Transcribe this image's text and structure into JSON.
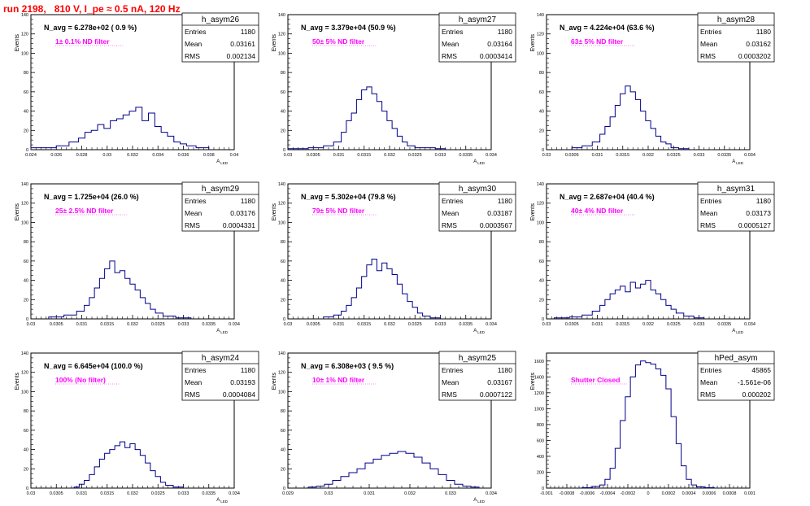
{
  "run_title": "run 2198,   810 V, I_pe ≈ 0.5 nA, 120 Hz",
  "colors": {
    "histogram_line": "#00008b",
    "ann_text": "#ff00ff",
    "title_text": "#ff0000",
    "frame": "#000000"
  },
  "chart_data": [
    {
      "type": "histogram",
      "name": "h_asym26",
      "stats": {
        "entries": "1180",
        "mean": "0.03161",
        "rms": "0.002134"
      },
      "stat_labels": [
        "Entries",
        "Mean",
        "RMS"
      ],
      "navg": "N_avg = 6.278e+02 ( 0.9 %)",
      "annotation": "1± 0.1% ND filter",
      "ylabel": "Events",
      "xlabel": "A_LED",
      "xlim": [
        0.024,
        0.04
      ],
      "ylim": [
        0,
        140
      ],
      "xticks": [
        "0.024",
        "0.026",
        "0.028",
        "0.03",
        "0.032",
        "0.034",
        "0.036",
        "0.038",
        "0.04"
      ],
      "yticks": [
        "0",
        "20",
        "40",
        "60",
        "80",
        "100",
        "120",
        "140"
      ],
      "bins_x": [
        0.0245,
        0.0255,
        0.0265,
        0.0275,
        0.028,
        0.0285,
        0.029,
        0.0295,
        0.03,
        0.0305,
        0.031,
        0.0315,
        0.032,
        0.0325,
        0.033,
        0.0335,
        0.034,
        0.0345,
        0.035,
        0.0355,
        0.036,
        0.0365,
        0.0375
      ],
      "values": [
        2,
        2,
        4,
        8,
        12,
        18,
        20,
        26,
        22,
        30,
        32,
        36,
        40,
        44,
        30,
        38,
        24,
        18,
        14,
        8,
        6,
        4,
        2
      ]
    },
    {
      "type": "histogram",
      "name": "h_asym27",
      "stats": {
        "entries": "1180",
        "mean": "0.03164",
        "rms": "0.0003414"
      },
      "stat_labels": [
        "Entries",
        "Mean",
        "RMS"
      ],
      "navg": "N_avg = 3.379e+04 (50.9 %)",
      "annotation": "50± 5% ND filter",
      "ylabel": "Events",
      "xlabel": "A_LED",
      "xlim": [
        0.03,
        0.034
      ],
      "ylim": [
        0,
        140
      ],
      "xticks": [
        "0.03",
        "0.0305",
        "0.031",
        "0.0315",
        "0.032",
        "0.0325",
        "0.033",
        "0.0335",
        "0.034"
      ],
      "yticks": [
        "0",
        "20",
        "40",
        "60",
        "80",
        "100",
        "120",
        "140"
      ],
      "bins_x": [
        0.0302,
        0.0306,
        0.0308,
        0.031,
        0.0311,
        0.0312,
        0.0313,
        0.0314,
        0.0315,
        0.0316,
        0.0317,
        0.0318,
        0.0319,
        0.032,
        0.0321,
        0.0322,
        0.0323,
        0.0324,
        0.0326,
        0.0328,
        0.033
      ],
      "values": [
        1,
        2,
        4,
        8,
        18,
        30,
        38,
        52,
        62,
        65,
        58,
        50,
        40,
        30,
        22,
        14,
        8,
        4,
        2,
        2,
        1
      ]
    },
    {
      "type": "histogram",
      "name": "h_asym28",
      "stats": {
        "entries": "1180",
        "mean": "0.03162",
        "rms": "0.0003202"
      },
      "stat_labels": [
        "Entries",
        "Mean",
        "RMS"
      ],
      "navg": "N_avg = 4.224e+04 (63.6 %)",
      "annotation": "63± 5% ND filter",
      "ylabel": "Events",
      "xlabel": "A_LED",
      "xlim": [
        0.03,
        0.034
      ],
      "ylim": [
        0,
        140
      ],
      "xticks": [
        "0.03",
        "0.0305",
        "0.031",
        "0.0315",
        "0.032",
        "0.0325",
        "0.033",
        "0.0335",
        "0.034"
      ],
      "yticks": [
        "0",
        "20",
        "40",
        "60",
        "80",
        "100",
        "120",
        "140"
      ],
      "bins_x": [
        0.0306,
        0.0308,
        0.031,
        0.0311,
        0.0312,
        0.0313,
        0.0314,
        0.0315,
        0.0316,
        0.0317,
        0.0318,
        0.0319,
        0.032,
        0.0321,
        0.0322,
        0.0323,
        0.0324,
        0.0325,
        0.0327
      ],
      "values": [
        2,
        4,
        8,
        16,
        24,
        34,
        46,
        58,
        66,
        60,
        52,
        40,
        30,
        22,
        14,
        8,
        6,
        2,
        1
      ]
    },
    {
      "type": "histogram",
      "name": "h_asym29",
      "stats": {
        "entries": "1180",
        "mean": "0.03176",
        "rms": "0.0004331"
      },
      "stat_labels": [
        "Entries",
        "Mean",
        "RMS"
      ],
      "navg": "N_avg = 1.725e+04 (26.0 %)",
      "annotation": "25± 2.5% ND filter",
      "ylabel": "Events",
      "xlabel": "A_LED",
      "xlim": [
        0.03,
        0.034
      ],
      "ylim": [
        0,
        140
      ],
      "xticks": [
        "0.03",
        "0.0305",
        "0.031",
        "0.0315",
        "0.032",
        "0.0325",
        "0.033",
        "0.0335",
        "0.034"
      ],
      "yticks": [
        "0",
        "20",
        "40",
        "60",
        "80",
        "100",
        "120",
        "140"
      ],
      "bins_x": [
        0.0305,
        0.0308,
        0.031,
        0.0311,
        0.0312,
        0.0313,
        0.0314,
        0.0315,
        0.0316,
        0.0317,
        0.0318,
        0.0319,
        0.032,
        0.0321,
        0.0322,
        0.0323,
        0.0324,
        0.0325,
        0.0327,
        0.033
      ],
      "values": [
        2,
        4,
        8,
        14,
        22,
        32,
        42,
        52,
        60,
        48,
        50,
        42,
        36,
        30,
        22,
        16,
        10,
        6,
        3,
        1
      ]
    },
    {
      "type": "histogram",
      "name": "h_asym30",
      "stats": {
        "entries": "1180",
        "mean": "0.03187",
        "rms": "0.0003567"
      },
      "stat_labels": [
        "Entries",
        "Mean",
        "RMS"
      ],
      "navg": "N_avg = 5.302e+04 (79.8 %)",
      "annotation": "79± 5% ND filter",
      "ylabel": "Events",
      "xlabel": "A_LED",
      "xlim": [
        0.03,
        0.034
      ],
      "ylim": [
        0,
        140
      ],
      "xticks": [
        "0.03",
        "0.0305",
        "0.031",
        "0.0315",
        "0.032",
        "0.0325",
        "0.033",
        "0.0335",
        "0.034"
      ],
      "yticks": [
        "0",
        "20",
        "40",
        "60",
        "80",
        "100",
        "120",
        "140"
      ],
      "bins_x": [
        0.0308,
        0.031,
        0.0311,
        0.0312,
        0.0313,
        0.0314,
        0.0315,
        0.0316,
        0.0317,
        0.0318,
        0.0319,
        0.032,
        0.0321,
        0.0322,
        0.0323,
        0.0324,
        0.0325,
        0.0326,
        0.0327,
        0.0329
      ],
      "values": [
        2,
        4,
        8,
        14,
        22,
        32,
        44,
        56,
        62,
        50,
        58,
        52,
        46,
        36,
        26,
        18,
        12,
        6,
        3,
        1
      ]
    },
    {
      "type": "histogram",
      "name": "h_asym31",
      "stats": {
        "entries": "1180",
        "mean": "0.03173",
        "rms": "0.0005127"
      },
      "stat_labels": [
        "Entries",
        "Mean",
        "RMS"
      ],
      "navg": "N_avg = 2.687e+04 (40.4 %)",
      "annotation": "40± 4% ND filter",
      "ylabel": "Events",
      "xlabel": "A_LED",
      "xlim": [
        0.03,
        0.034
      ],
      "ylim": [
        0,
        140
      ],
      "xticks": [
        "0.03",
        "0.0305",
        "0.031",
        "0.0315",
        "0.032",
        "0.0325",
        "0.033",
        "0.0335",
        "0.034"
      ],
      "yticks": [
        "0",
        "20",
        "40",
        "60",
        "80",
        "100",
        "120",
        "140"
      ],
      "bins_x": [
        0.0303,
        0.0306,
        0.0308,
        0.031,
        0.0311,
        0.0312,
        0.0313,
        0.0314,
        0.0315,
        0.0316,
        0.0317,
        0.0318,
        0.0319,
        0.032,
        0.0321,
        0.0322,
        0.0323,
        0.0324,
        0.0325,
        0.0326,
        0.0328,
        0.033
      ],
      "values": [
        1,
        2,
        4,
        8,
        14,
        20,
        26,
        30,
        34,
        28,
        38,
        32,
        36,
        40,
        30,
        26,
        20,
        14,
        10,
        6,
        3,
        1
      ]
    },
    {
      "type": "histogram",
      "name": "h_asym24",
      "stats": {
        "entries": "1180",
        "mean": "0.03193",
        "rms": "0.0004084"
      },
      "stat_labels": [
        "Entries",
        "Mean",
        "RMS"
      ],
      "navg": "N_avg = 6.645e+04 (100.0 %)",
      "annotation": "100% (No filter)",
      "ylabel": "Events",
      "xlabel": "A_LED",
      "xlim": [
        0.03,
        0.034
      ],
      "ylim": [
        0,
        140
      ],
      "xticks": [
        "0.03",
        "0.0305",
        "0.031",
        "0.0315",
        "0.032",
        "0.0325",
        "0.033",
        "0.0335",
        "0.034"
      ],
      "yticks": [
        "0",
        "20",
        "40",
        "60",
        "80",
        "100",
        "120",
        "140"
      ],
      "bins_x": [
        0.0309,
        0.031,
        0.0311,
        0.0312,
        0.0313,
        0.0314,
        0.0315,
        0.0316,
        0.0317,
        0.0318,
        0.0319,
        0.032,
        0.0321,
        0.0322,
        0.0323,
        0.0324,
        0.0325,
        0.0326,
        0.0327,
        0.0329
      ],
      "values": [
        1,
        4,
        8,
        14,
        22,
        30,
        36,
        40,
        44,
        48,
        42,
        46,
        40,
        34,
        26,
        18,
        12,
        6,
        3,
        1
      ]
    },
    {
      "type": "histogram",
      "name": "h_asym25",
      "stats": {
        "entries": "1180",
        "mean": "0.03167",
        "rms": "0.0007122"
      },
      "stat_labels": [
        "Entries",
        "Mean",
        "RMS"
      ],
      "navg": "N_avg = 6.308e+03 ( 9.5 %)",
      "annotation": "10± 1% ND filter",
      "ylabel": "Events",
      "xlabel": "A_LED",
      "xlim": [
        0.029,
        0.034
      ],
      "ylim": [
        0,
        140
      ],
      "xticks": [
        "0.029",
        "0.03",
        "0.031",
        "0.032",
        "0.033",
        "0.034"
      ],
      "yticks": [
        "0",
        "20",
        "40",
        "60",
        "80",
        "100",
        "120",
        "140"
      ],
      "bins_x": [
        0.0296,
        0.0298,
        0.03,
        0.0302,
        0.0304,
        0.0306,
        0.0308,
        0.031,
        0.0312,
        0.0314,
        0.0316,
        0.0318,
        0.032,
        0.0322,
        0.0324,
        0.0326,
        0.0328,
        0.033,
        0.0332,
        0.0334,
        0.0336
      ],
      "values": [
        1,
        2,
        4,
        8,
        12,
        16,
        20,
        26,
        30,
        34,
        36,
        38,
        36,
        32,
        26,
        20,
        14,
        8,
        4,
        2,
        1
      ]
    },
    {
      "type": "histogram",
      "name": "hPed_asym",
      "stats": {
        "entries": "45865",
        "mean": "-1.561e-06",
        "rms": "0.000202"
      },
      "stat_labels": [
        "Entries",
        "Mean",
        "RMS"
      ],
      "navg": "",
      "annotation": "Shutter Closed",
      "ylabel": "Events",
      "xlabel": "",
      "xlim": [
        -0.001,
        0.001
      ],
      "ylim": [
        0,
        1700
      ],
      "xticks": [
        "-0.001",
        "-0.0008",
        "-0.0006",
        "-0.0004",
        "-0.0002",
        "0",
        "0.0002",
        "0.0004",
        "0.0006",
        "0.0008",
        "0.001"
      ],
      "yticks": [
        "0",
        "200",
        "400",
        "600",
        "800",
        "1000",
        "1200",
        "1400",
        "1600"
      ],
      "bins_x": [
        -0.0006,
        -0.0005,
        -0.00045,
        -0.0004,
        -0.00035,
        -0.0003,
        -0.00025,
        -0.0002,
        -0.00015,
        -0.0001,
        -5e-05,
        0,
        5e-05,
        0.0001,
        0.00015,
        0.0002,
        0.00025,
        0.0003,
        0.00035,
        0.0004,
        0.00045,
        0.0005,
        0.0006
      ],
      "values": [
        5,
        20,
        40,
        110,
        250,
        500,
        850,
        1150,
        1400,
        1550,
        1600,
        1580,
        1560,
        1500,
        1420,
        1250,
        900,
        560,
        280,
        110,
        40,
        15,
        5
      ]
    }
  ]
}
